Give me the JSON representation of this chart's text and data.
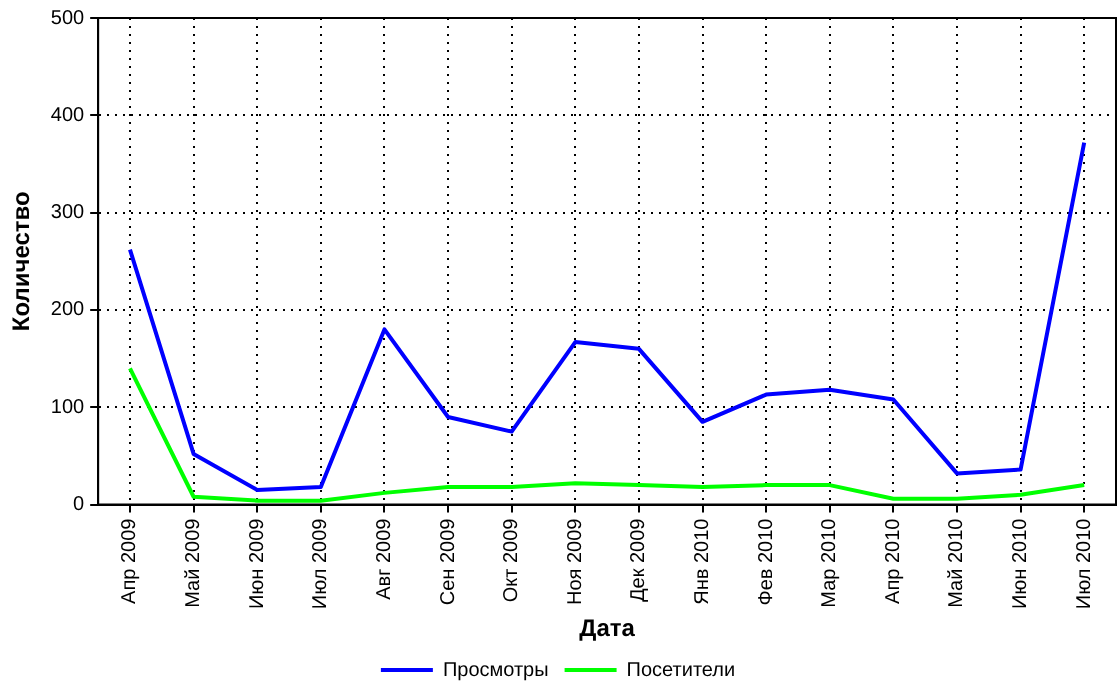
{
  "chart_data": {
    "type": "line",
    "xlabel": "Дата",
    "ylabel": "Количество",
    "categories": [
      "Апр 2009",
      "Май 2009",
      "Июн 2009",
      "Июл 2009",
      "Авг 2009",
      "Сен 2009",
      "Окт 2009",
      "Ноя 2009",
      "Дек 2009",
      "Янв 2010",
      "Фев 2010",
      "Мар 2010",
      "Апр 2010",
      "Май 2010",
      "Июн 2010",
      "Июл 2010"
    ],
    "series": [
      {
        "name": "Просмотры",
        "color": "#0000ff",
        "values": [
          262,
          52,
          15,
          18,
          180,
          90,
          75,
          167,
          160,
          85,
          113,
          118,
          108,
          32,
          36,
          372
        ]
      },
      {
        "name": "Посетители",
        "color": "#00ff00",
        "values": [
          140,
          8,
          4,
          4,
          12,
          18,
          18,
          22,
          20,
          18,
          20,
          20,
          6,
          6,
          10,
          20
        ]
      }
    ],
    "ylim": [
      0,
      500
    ],
    "yticks": [
      0,
      100,
      200,
      300,
      400,
      500
    ],
    "grid": true,
    "legend": "bottom",
    "marker": "none",
    "line_style": "solid"
  }
}
